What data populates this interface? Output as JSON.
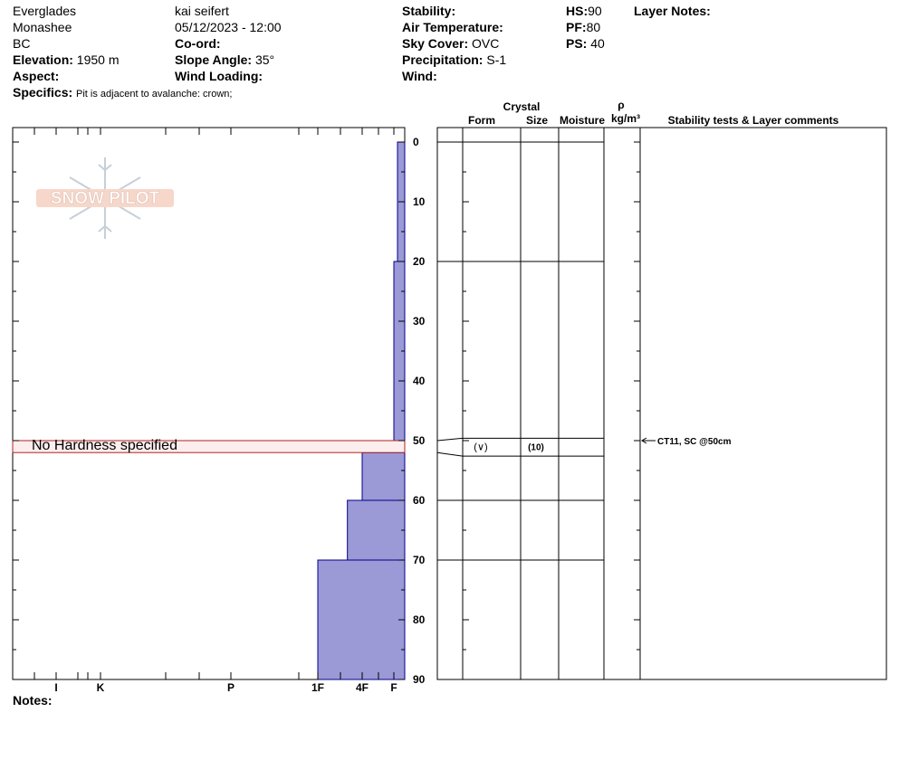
{
  "header": {
    "location": "Everglades",
    "range": "Monashee",
    "state": "BC",
    "elevation_label": "Elevation:",
    "elevation": "1950 m",
    "aspect_label": "Aspect:",
    "aspect": "",
    "specifics_label": "Specifics:",
    "specifics": "Pit is adjacent to avalanche: crown;",
    "observer": "kai seifert",
    "datetime": "05/12/2023 - 12:00",
    "coord_label": "Co-ord:",
    "coord": "",
    "slope_label": "Slope Angle:",
    "slope": "35°",
    "wind_loading_label": "Wind Loading:",
    "wind_loading": "",
    "stability_label": "Stability:",
    "stability": "",
    "air_temp_label": "Air Temperature:",
    "air_temp": "",
    "sky_label": "Sky Cover:",
    "sky": "OVC",
    "precip_label": "Precipitation:",
    "precip": "S-1",
    "wind_label": "Wind:",
    "wind": "",
    "hs_label": "HS:",
    "hs": "90",
    "pf_label": "PF:",
    "pf": "80",
    "ps_label": "PS:",
    "ps": "40",
    "layer_notes_label": "Layer Notes:"
  },
  "notes_label": "Notes:",
  "logo_text": "SNOW PILOT",
  "columns": {
    "crystal": "Crystal",
    "form": "Form",
    "size": "Size",
    "moisture": "Moisture",
    "rho": "ρ",
    "density_unit": "kg/m³",
    "comments": "Stability tests & Layer comments"
  },
  "chart_data": {
    "type": "bar",
    "orientation": "horizontal",
    "x_axis": {
      "type": "hand-hardness",
      "ticks": [
        "I",
        "K",
        "P",
        "1F",
        "4F",
        "F"
      ]
    },
    "y_axis": {
      "label": "",
      "range": [
        0,
        90
      ],
      "ticks": [
        0,
        10,
        20,
        30,
        40,
        50,
        60,
        70,
        80,
        90
      ]
    },
    "colors": {
      "fill": "#9b99d6",
      "stroke": "#00008b",
      "unspecified_fill": "#fdeeee",
      "unspecified_stroke": "#b22222"
    },
    "layers": [
      {
        "top": 0,
        "bottom": 20,
        "hardness": "F-"
      },
      {
        "top": 20,
        "bottom": 50,
        "hardness": "F"
      },
      {
        "top": 50,
        "bottom": 52,
        "hardness": null,
        "label": "No Hardness specified"
      },
      {
        "top": 52,
        "bottom": 60,
        "hardness": "4F"
      },
      {
        "top": 60,
        "bottom": 70,
        "hardness": "4F+"
      },
      {
        "top": 70,
        "bottom": 90,
        "hardness": "1F"
      }
    ],
    "layer_boundaries": [
      0,
      20,
      50,
      52,
      60,
      70
    ],
    "crystal_layer": {
      "top": 50,
      "bottom": 52,
      "form": "(∨)",
      "size": "(10)"
    },
    "stability_tests": [
      {
        "depth": 50,
        "text": "CT11, SC @50cm"
      }
    ]
  }
}
